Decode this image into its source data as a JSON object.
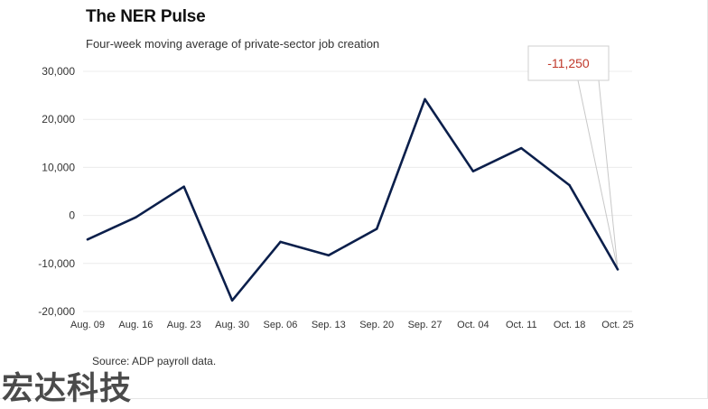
{
  "header": {
    "title": "The NER Pulse",
    "subtitle": "Four-week moving average of private-sector job creation"
  },
  "footer": {
    "source": "Source: ADP payroll data."
  },
  "watermark": {
    "text": "宏达科技"
  },
  "chart_data": {
    "type": "line",
    "categories": [
      "Aug. 09",
      "Aug. 16",
      "Aug. 23",
      "Aug. 30",
      "Sep. 06",
      "Sep. 13",
      "Sep. 20",
      "Sep. 27",
      "Oct. 04",
      "Oct. 11",
      "Oct. 18",
      "Oct. 25"
    ],
    "series": [
      {
        "values": [
          -5000,
          -400,
          6000,
          -17700,
          -5500,
          -8300,
          -2800,
          24200,
          9200,
          14000,
          6300,
          -11250
        ],
        "color": "#0b1f4b"
      }
    ],
    "ylim": [
      -20000,
      30000
    ],
    "yticks": [
      -20000,
      -10000,
      0,
      10000,
      20000,
      30000
    ],
    "ytick_labels": [
      "-20,000",
      "-10,000",
      "0",
      "10,000",
      "20,000",
      "30,000"
    ],
    "grid": true,
    "annotation": {
      "text": "-11,250",
      "point_index": 11,
      "color": "#c0392b"
    }
  }
}
